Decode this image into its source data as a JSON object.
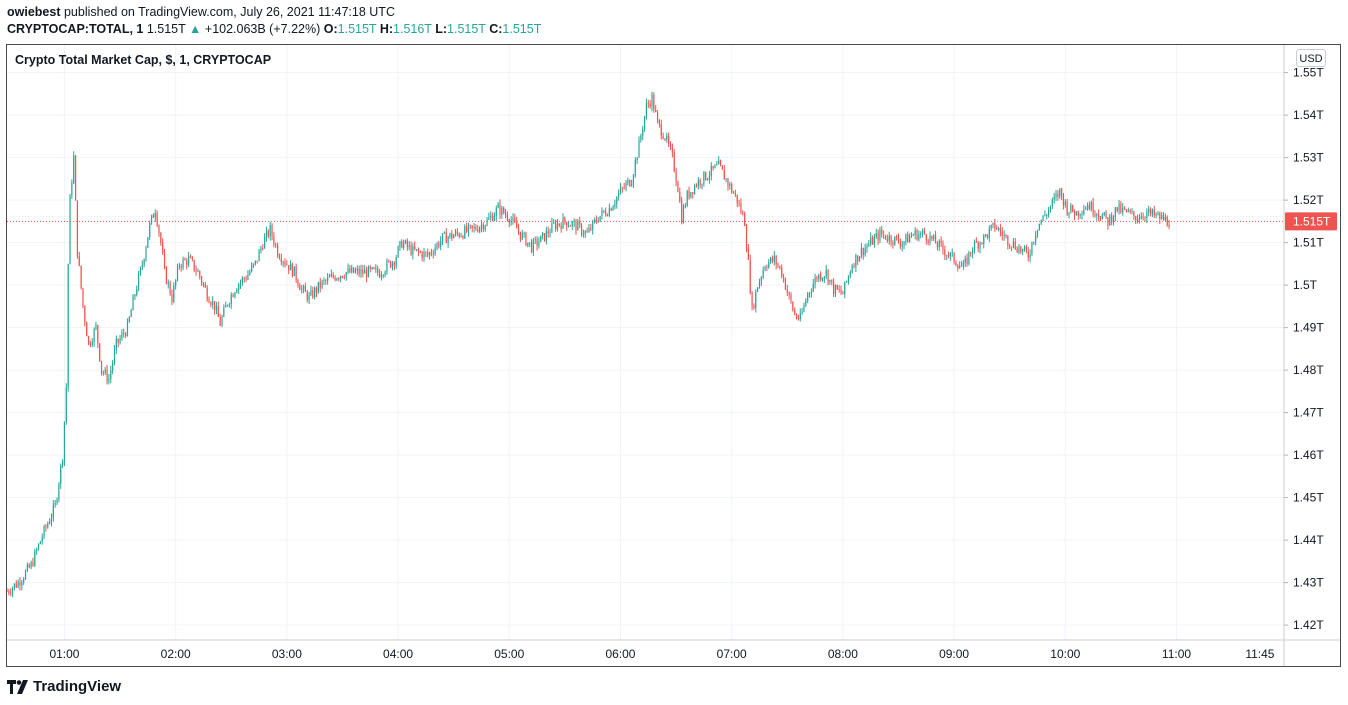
{
  "header": {
    "author": "owiebest",
    "published_text": " published on TradingView.com, July 26, 2021 11:47:18 UTC",
    "symbol": "CRYPTOCAP:TOTAL, 1",
    "last": "1.515T",
    "change_arrow": "▲",
    "change": "+102.063B (+7.22%)",
    "o_label": "O:",
    "o_value": "1.515T",
    "h_label": "H:",
    "h_value": "1.516T",
    "l_label": "L:",
    "l_value": "1.515T",
    "c_label": "C:",
    "c_value": "1.515T"
  },
  "legend": "Crypto Total Market Cap, $, 1, CRYPTOCAP",
  "currency_button": "USD",
  "footer": {
    "brand": "TradingView",
    "logo_icon": "tradingview-logo-icon"
  },
  "colors": {
    "up": "#26a69a",
    "down": "#ef5350",
    "grid": "#f0f3fa",
    "last_price": "#ef5350"
  },
  "chart_data": {
    "type": "candlestick",
    "title": "Crypto Total Market Cap, $, 1, CRYPTOCAP",
    "unit": "T USD",
    "y_ticks": [
      "1.55T",
      "1.54T",
      "1.53T",
      "1.52T",
      "1.51T",
      "1.5T",
      "1.49T",
      "1.48T",
      "1.47T",
      "1.46T",
      "1.45T",
      "1.44T",
      "1.43T",
      "1.42T"
    ],
    "y_range": [
      1.4165,
      1.5565
    ],
    "x_ticks": [
      "01:00",
      "02:00",
      "03:00",
      "04:00",
      "05:00",
      "06:00",
      "07:00",
      "08:00",
      "09:00",
      "10:00",
      "11:00",
      "11:45"
    ],
    "x_tick_minutes": [
      60,
      120,
      180,
      240,
      300,
      360,
      420,
      480,
      540,
      600,
      660,
      705
    ],
    "x_range_minutes": [
      29,
      718
    ],
    "last_price": 1.515,
    "last_price_label": "1.515T",
    "grid": true,
    "close_path": [
      [
        29,
        1.428
      ],
      [
        35,
        1.43
      ],
      [
        42,
        1.434
      ],
      [
        48,
        1.441
      ],
      [
        55,
        1.448
      ],
      [
        59,
        1.46
      ],
      [
        61,
        1.476
      ],
      [
        62,
        1.505
      ],
      [
        63,
        1.52
      ],
      [
        65,
        1.53
      ],
      [
        67,
        1.508
      ],
      [
        70,
        1.495
      ],
      [
        73,
        1.486
      ],
      [
        77,
        1.49
      ],
      [
        80,
        1.48
      ],
      [
        84,
        1.478
      ],
      [
        88,
        1.486
      ],
      [
        94,
        1.49
      ],
      [
        98,
        1.498
      ],
      [
        102,
        1.505
      ],
      [
        106,
        1.514
      ],
      [
        109,
        1.518
      ],
      [
        112,
        1.51
      ],
      [
        114,
        1.503
      ],
      [
        118,
        1.497
      ],
      [
        122,
        1.505
      ],
      [
        127,
        1.506
      ],
      [
        132,
        1.503
      ],
      [
        137,
        1.498
      ],
      [
        141,
        1.495
      ],
      [
        144,
        1.491
      ],
      [
        148,
        1.496
      ],
      [
        153,
        1.5
      ],
      [
        158,
        1.502
      ],
      [
        163,
        1.505
      ],
      [
        167,
        1.51
      ],
      [
        171,
        1.513
      ],
      [
        175,
        1.508
      ],
      [
        180,
        1.505
      ],
      [
        184,
        1.503
      ],
      [
        188,
        1.499
      ],
      [
        192,
        1.497
      ],
      [
        198,
        1.5
      ],
      [
        205,
        1.502
      ],
      [
        212,
        1.503
      ],
      [
        220,
        1.503
      ],
      [
        230,
        1.503
      ],
      [
        238,
        1.506
      ],
      [
        242,
        1.51
      ],
      [
        248,
        1.508
      ],
      [
        256,
        1.507
      ],
      [
        264,
        1.511
      ],
      [
        272,
        1.512
      ],
      [
        280,
        1.513
      ],
      [
        288,
        1.515
      ],
      [
        294,
        1.518
      ],
      [
        300,
        1.516
      ],
      [
        306,
        1.512
      ],
      [
        312,
        1.509
      ],
      [
        318,
        1.511
      ],
      [
        324,
        1.514
      ],
      [
        330,
        1.515
      ],
      [
        336,
        1.514
      ],
      [
        342,
        1.512
      ],
      [
        348,
        1.516
      ],
      [
        354,
        1.518
      ],
      [
        360,
        1.522
      ],
      [
        366,
        1.525
      ],
      [
        370,
        1.533
      ],
      [
        374,
        1.542
      ],
      [
        377,
        1.544
      ],
      [
        380,
        1.538
      ],
      [
        384,
        1.535
      ],
      [
        388,
        1.53
      ],
      [
        391,
        1.523
      ],
      [
        393,
        1.516
      ],
      [
        396,
        1.521
      ],
      [
        401,
        1.524
      ],
      [
        407,
        1.526
      ],
      [
        413,
        1.528
      ],
      [
        418,
        1.524
      ],
      [
        423,
        1.52
      ],
      [
        427,
        1.515
      ],
      [
        429,
        1.505
      ],
      [
        431,
        1.494
      ],
      [
        434,
        1.5
      ],
      [
        438,
        1.505
      ],
      [
        443,
        1.506
      ],
      [
        447,
        1.503
      ],
      [
        451,
        1.497
      ],
      [
        454,
        1.493
      ],
      [
        457,
        1.492
      ],
      [
        461,
        1.498
      ],
      [
        466,
        1.502
      ],
      [
        471,
        1.503
      ],
      [
        475,
        1.499
      ],
      [
        480,
        1.498
      ],
      [
        485,
        1.505
      ],
      [
        490,
        1.508
      ],
      [
        495,
        1.51
      ],
      [
        500,
        1.512
      ],
      [
        506,
        1.511
      ],
      [
        512,
        1.51
      ],
      [
        518,
        1.512
      ],
      [
        524,
        1.512
      ],
      [
        530,
        1.51
      ],
      [
        535,
        1.508
      ],
      [
        540,
        1.506
      ],
      [
        545,
        1.504
      ],
      [
        550,
        1.509
      ],
      [
        556,
        1.511
      ],
      [
        562,
        1.514
      ],
      [
        568,
        1.511
      ],
      [
        574,
        1.509
      ],
      [
        580,
        1.507
      ],
      [
        585,
        1.514
      ],
      [
        590,
        1.517
      ],
      [
        594,
        1.52
      ],
      [
        597,
        1.522
      ],
      [
        601,
        1.518
      ],
      [
        606,
        1.517
      ],
      [
        612,
        1.519
      ],
      [
        618,
        1.517
      ],
      [
        623,
        1.515
      ],
      [
        628,
        1.518
      ],
      [
        633,
        1.517
      ],
      [
        638,
        1.516
      ],
      [
        644,
        1.517
      ],
      [
        650,
        1.516
      ],
      [
        656,
        1.515
      ]
    ]
  }
}
